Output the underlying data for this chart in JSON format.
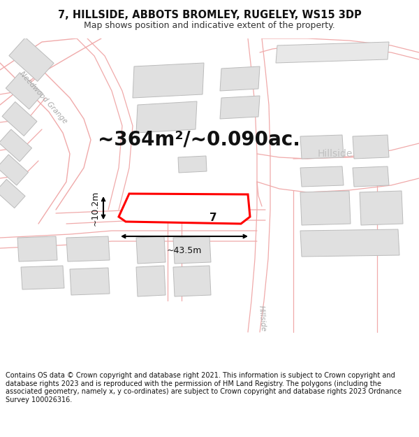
{
  "title": "7, HILLSIDE, ABBOTS BROMLEY, RUGELEY, WS15 3DP",
  "subtitle": "Map shows position and indicative extent of the property.",
  "footer": "Contains OS data © Crown copyright and database right 2021. This information is subject to Crown copyright and database rights 2023 and is reproduced with the permission of HM Land Registry. The polygons (including the associated geometry, namely x, y co-ordinates) are subject to Crown copyright and database rights 2023 Ordnance Survey 100026316.",
  "area_text": "~364m²/~0.090ac.",
  "width_label": "~43.5m",
  "height_label": "~10.2m",
  "plot_number": "7",
  "road_line_color": "#f0aaaa",
  "building_fill": "#e0e0e0",
  "building_edge": "#bbbbbb",
  "highlight_color": "#ff0000",
  "title_fontsize": 10.5,
  "subtitle_fontsize": 9,
  "footer_fontsize": 7.0,
  "area_fontsize": 20,
  "label_fontsize": 9,
  "figsize": [
    6.0,
    6.25
  ],
  "dpi": 100,
  "needwood_label": "Needwood Grange",
  "hillside_road_label": "Hillside",
  "hillside_area_label": "Hillside"
}
